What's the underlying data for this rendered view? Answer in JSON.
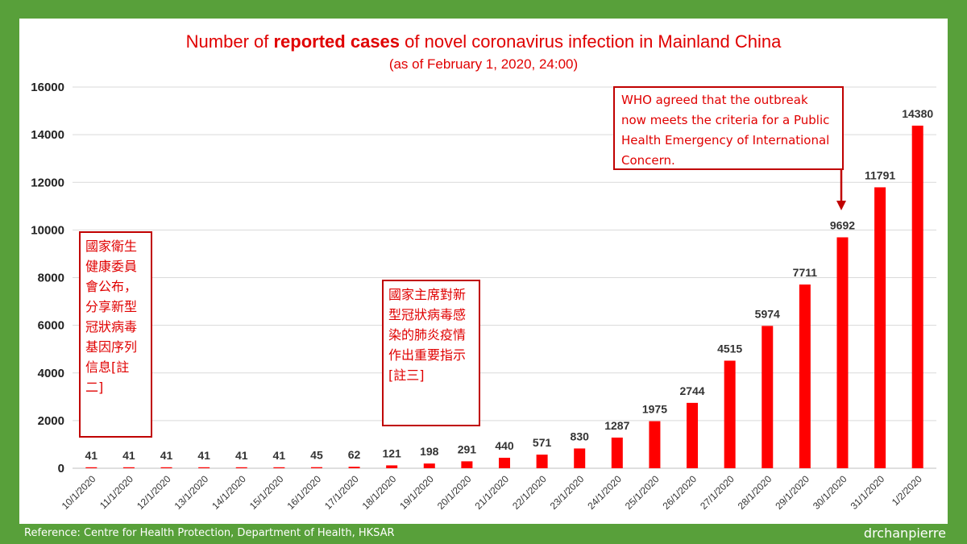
{
  "chart_data": {
    "type": "bar",
    "title_prefix": "Number of ",
    "title_bold": "reported cases",
    "title_suffix": " of novel coronavirus infection in Mainland China",
    "subtitle": "(as of February 1, 2020, 24:00)",
    "xlabel": "",
    "ylabel": "",
    "ylim": [
      0,
      16000
    ],
    "yticks": [
      0,
      2000,
      4000,
      6000,
      8000,
      10000,
      12000,
      14000,
      16000
    ],
    "grid": true,
    "bar_color": "#ff0000",
    "categories": [
      "10/1/2020",
      "11/1/2020",
      "12/1/2020",
      "13/1/2020",
      "14/1/2020",
      "15/1/2020",
      "16/1/2020",
      "17/1/2020",
      "18/1/2020",
      "19/1/2020",
      "20/1/2020",
      "21/1/2020",
      "22/1/2020",
      "23/1/2020",
      "24/1/2020",
      "25/1/2020",
      "26/1/2020",
      "27/1/2020",
      "28/1/2020",
      "29/1/2020",
      "30/1/2020",
      "31/1/2020",
      "1/2/2020"
    ],
    "values": [
      41,
      41,
      41,
      41,
      41,
      41,
      45,
      62,
      121,
      198,
      291,
      440,
      571,
      830,
      1287,
      1975,
      2744,
      4515,
      5974,
      7711,
      9692,
      11791,
      14380
    ]
  },
  "annotations": {
    "note1": "國家衛生健康委員會公布，分享新型冠狀病毒基因序列信息[註二]",
    "note2": "國家主席對新型冠狀病毒感染的肺炎疫情作出重要指示[註三]",
    "who_note": "WHO agreed that the outbreak now meets the criteria for a Public Health Emergency of International Concern."
  },
  "footer": {
    "reference": "Reference: Centre for Health Protection, Department of Health, HKSAR",
    "brand": "drchanpierre"
  },
  "colors": {
    "frame": "#58a03a",
    "accent": "#e00000",
    "note_border": "#c00000"
  }
}
